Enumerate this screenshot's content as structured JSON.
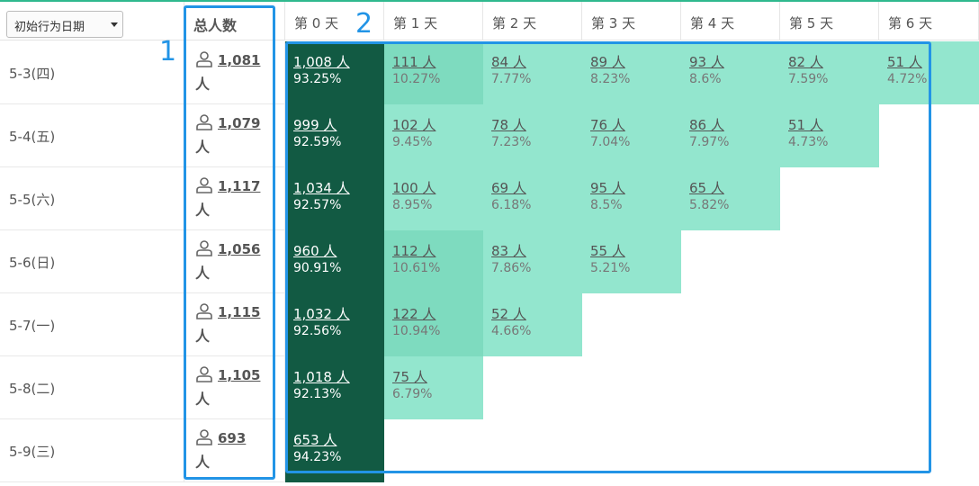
{
  "header": {
    "dropdown_label": "初始行为日期",
    "total_label": "总人数",
    "days": [
      "第 0 天",
      "第 1 天",
      "第 2 天",
      "第 3 天",
      "第 4 天",
      "第 5 天",
      "第 6 天"
    ]
  },
  "unit": "人",
  "rows": [
    {
      "date": "5-3(四)",
      "total": "1,081",
      "cells": [
        {
          "count": "1,008 人",
          "pct": "93.25%"
        },
        {
          "count": "111 人",
          "pct": "10.27%"
        },
        {
          "count": "84 人",
          "pct": "7.77%"
        },
        {
          "count": "89 人",
          "pct": "8.23%"
        },
        {
          "count": "93 人",
          "pct": "8.6%"
        },
        {
          "count": "82 人",
          "pct": "7.59%"
        },
        {
          "count": "51 人",
          "pct": "4.72%"
        }
      ]
    },
    {
      "date": "5-4(五)",
      "total": "1,079",
      "cells": [
        {
          "count": "999 人",
          "pct": "92.59%"
        },
        {
          "count": "102 人",
          "pct": "9.45%"
        },
        {
          "count": "78 人",
          "pct": "7.23%"
        },
        {
          "count": "76 人",
          "pct": "7.04%"
        },
        {
          "count": "86 人",
          "pct": "7.97%"
        },
        {
          "count": "51 人",
          "pct": "4.73%"
        }
      ]
    },
    {
      "date": "5-5(六)",
      "total": "1,117",
      "cells": [
        {
          "count": "1,034 人",
          "pct": "92.57%"
        },
        {
          "count": "100 人",
          "pct": "8.95%"
        },
        {
          "count": "69 人",
          "pct": "6.18%"
        },
        {
          "count": "95 人",
          "pct": "8.5%"
        },
        {
          "count": "65 人",
          "pct": "5.82%"
        }
      ]
    },
    {
      "date": "5-6(日)",
      "total": "1,056",
      "cells": [
        {
          "count": "960 人",
          "pct": "90.91%"
        },
        {
          "count": "112 人",
          "pct": "10.61%"
        },
        {
          "count": "83 人",
          "pct": "7.86%"
        },
        {
          "count": "55 人",
          "pct": "5.21%"
        }
      ]
    },
    {
      "date": "5-7(一)",
      "total": "1,115",
      "cells": [
        {
          "count": "1,032 人",
          "pct": "92.56%"
        },
        {
          "count": "122 人",
          "pct": "10.94%"
        },
        {
          "count": "52 人",
          "pct": "4.66%"
        }
      ]
    },
    {
      "date": "5-8(二)",
      "total": "1,105",
      "cells": [
        {
          "count": "1,018 人",
          "pct": "92.13%"
        },
        {
          "count": "75 人",
          "pct": "6.79%"
        }
      ]
    },
    {
      "date": "5-9(三)",
      "total": "693",
      "cells": [
        {
          "count": "653 人",
          "pct": "94.23%"
        }
      ]
    }
  ],
  "annotations": {
    "label_1": "1",
    "label_2": "2"
  },
  "colors": {
    "day0": "#125a43",
    "light": "#93e6ce",
    "mid": "#7edbbf",
    "annotation": "#2294e6",
    "accent": "#2fb98e"
  }
}
